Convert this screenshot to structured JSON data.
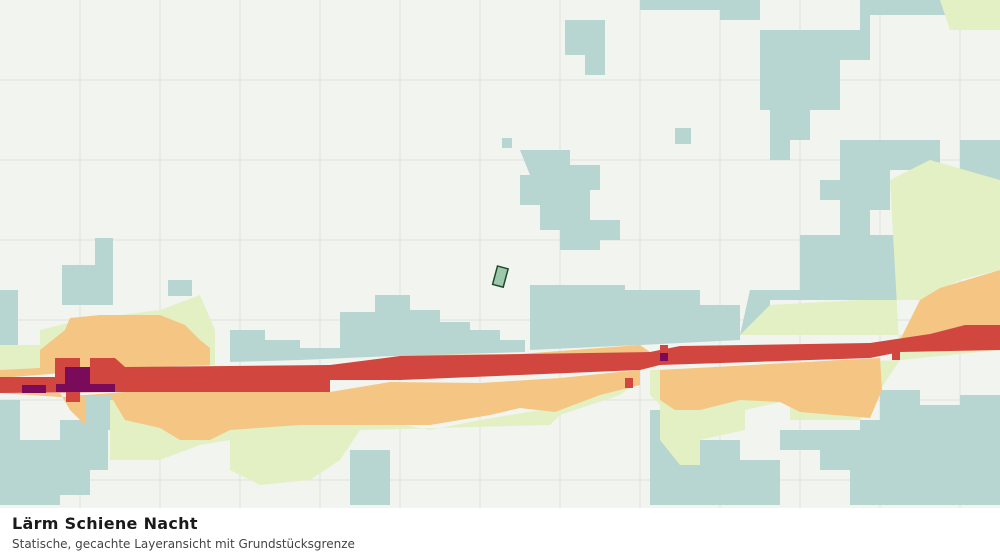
{
  "map": {
    "title": "Lärm Schiene Nacht",
    "subtitle": "Statische, gecachte Layeransicht mit Grundstücksgrenze"
  }
}
